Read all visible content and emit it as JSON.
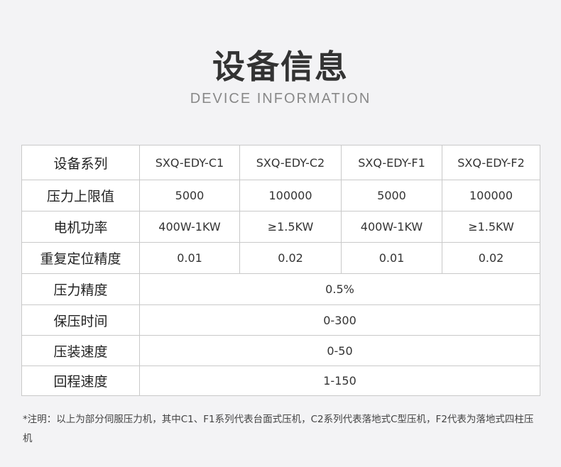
{
  "header": {
    "title": "设备信息",
    "subtitle": "DEVICE INFORMATION"
  },
  "table": {
    "series_label": "设备系列",
    "models": [
      "SXQ-EDY-C1",
      "SXQ-EDY-C2",
      "SXQ-EDY-F1",
      "SXQ-EDY-F2"
    ],
    "rows": [
      {
        "label": "压力上限值",
        "values": [
          "5000",
          "100000",
          "5000",
          "100000"
        ]
      },
      {
        "label": "电机功率",
        "values": [
          "400W-1KW",
          "≥1.5KW",
          "400W-1KW",
          "≥1.5KW"
        ]
      },
      {
        "label": "重复定位精度",
        "values": [
          "0.01",
          "0.02",
          "0.01",
          "0.02"
        ]
      }
    ],
    "shared_rows": [
      {
        "label": "压力精度",
        "value": "0.5%"
      },
      {
        "label": "保压时间",
        "value": "0-300"
      },
      {
        "label": "压装速度",
        "value": "0-50"
      },
      {
        "label": "回程速度",
        "value": "1-150"
      }
    ]
  },
  "note": "*注明：以上为部分伺服压力机，其中C1、F1系列代表台面式压机，C2系列代表落地式C型压机，F2代表为落地式四柱压机"
}
